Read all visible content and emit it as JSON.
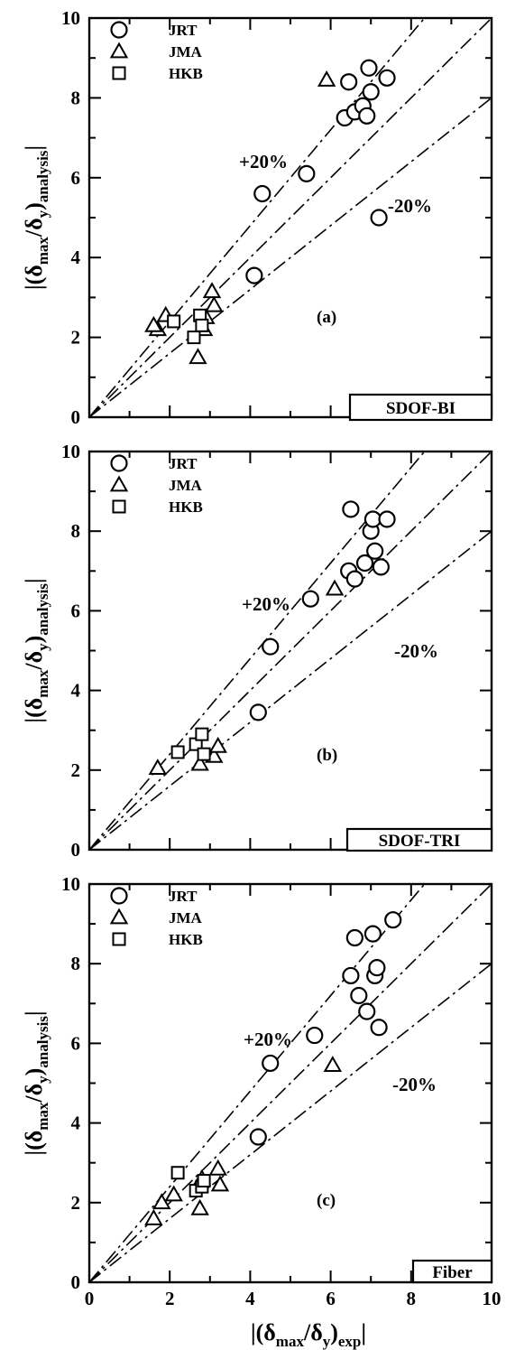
{
  "chart_data": [
    {
      "type": "scatter",
      "panel_tag": "(a)",
      "model_label": "SDOF-BI",
      "xlim": [
        0,
        10
      ],
      "ylim": [
        0,
        10
      ],
      "x_ticks": [
        "0",
        "2",
        "4",
        "6",
        "8",
        "10"
      ],
      "y_ticks": [
        "0",
        "2",
        "4",
        "6",
        "8",
        "10"
      ],
      "ylabel": "|(δmax/δy)analysis|",
      "reference_lines": [
        {
          "label": "+20%",
          "slope": 1.2,
          "style": "dash-dot"
        },
        {
          "label": "",
          "slope": 1.0,
          "style": "dash-dot"
        },
        {
          "label": "-20%",
          "slope": 0.8,
          "style": "dash-dot"
        }
      ],
      "series": [
        {
          "name": "JRT",
          "marker": "circle",
          "points": [
            [
              4.3,
              5.6
            ],
            [
              5.4,
              6.1
            ],
            [
              4.1,
              3.55
            ],
            [
              6.45,
              8.4
            ],
            [
              6.35,
              7.5
            ],
            [
              6.6,
              7.65
            ],
            [
              6.8,
              7.8
            ],
            [
              6.9,
              7.55
            ],
            [
              6.95,
              8.75
            ],
            [
              7.0,
              8.15
            ],
            [
              7.4,
              8.5
            ],
            [
              7.2,
              5.0
            ]
          ]
        },
        {
          "name": "JMA",
          "marker": "triangle",
          "points": [
            [
              1.7,
              2.2
            ],
            [
              1.9,
              2.55
            ],
            [
              1.6,
              2.3
            ],
            [
              2.7,
              1.5
            ],
            [
              2.85,
              2.2
            ],
            [
              3.05,
              3.15
            ],
            [
              3.1,
              2.8
            ],
            [
              2.9,
              2.5
            ],
            [
              5.9,
              8.45
            ]
          ]
        },
        {
          "name": "HKB",
          "marker": "square",
          "points": [
            [
              2.1,
              2.4
            ],
            [
              2.6,
              2.0
            ],
            [
              2.75,
              2.55
            ],
            [
              2.8,
              2.3
            ]
          ]
        }
      ]
    },
    {
      "type": "scatter",
      "panel_tag": "(b)",
      "model_label": "SDOF-TRI",
      "xlim": [
        0,
        10
      ],
      "ylim": [
        0,
        10
      ],
      "x_ticks": [
        "0",
        "2",
        "4",
        "6",
        "8",
        "10"
      ],
      "y_ticks": [
        "0",
        "2",
        "4",
        "6",
        "8",
        "10"
      ],
      "ylabel": "|(δmax/δy)analysis|",
      "reference_lines": [
        {
          "label": "+20%",
          "slope": 1.2,
          "style": "dash-dot"
        },
        {
          "label": "",
          "slope": 1.0,
          "style": "dash-dot"
        },
        {
          "label": "-20%",
          "slope": 0.8,
          "style": "dash-dot"
        }
      ],
      "series": [
        {
          "name": "JRT",
          "marker": "circle",
          "points": [
            [
              4.5,
              5.1
            ],
            [
              5.5,
              6.3
            ],
            [
              4.2,
              3.45
            ],
            [
              6.5,
              8.55
            ],
            [
              6.45,
              7.0
            ],
            [
              6.6,
              6.8
            ],
            [
              6.85,
              7.2
            ],
            [
              7.0,
              8.0
            ],
            [
              7.05,
              8.3
            ],
            [
              7.1,
              7.5
            ],
            [
              7.25,
              7.1
            ],
            [
              7.4,
              8.3
            ]
          ]
        },
        {
          "name": "JMA",
          "marker": "triangle",
          "points": [
            [
              1.7,
              2.05
            ],
            [
              2.75,
              2.15
            ],
            [
              3.1,
              2.35
            ],
            [
              3.2,
              2.6
            ],
            [
              6.1,
              6.55
            ]
          ]
        },
        {
          "name": "HKB",
          "marker": "square",
          "points": [
            [
              2.2,
              2.45
            ],
            [
              2.65,
              2.65
            ],
            [
              2.8,
              2.9
            ],
            [
              2.85,
              2.4
            ]
          ]
        }
      ]
    },
    {
      "type": "scatter",
      "panel_tag": "(c)",
      "model_label": "Fiber",
      "xlim": [
        0,
        10
      ],
      "ylim": [
        0,
        10
      ],
      "x_ticks": [
        "0",
        "2",
        "4",
        "6",
        "8",
        "10"
      ],
      "y_ticks": [
        "0",
        "2",
        "4",
        "6",
        "8",
        "10"
      ],
      "ylabel": "|(δmax/δy)analysis|",
      "xlabel": "|(δmax/δy)exp|",
      "reference_lines": [
        {
          "label": "+20%",
          "slope": 1.2,
          "style": "dash-dot"
        },
        {
          "label": "",
          "slope": 1.0,
          "style": "dash-dot"
        },
        {
          "label": "-20%",
          "slope": 0.8,
          "style": "dash-dot"
        }
      ],
      "series": [
        {
          "name": "JRT",
          "marker": "circle",
          "points": [
            [
              4.5,
              5.5
            ],
            [
              5.6,
              6.2
            ],
            [
              4.2,
              3.65
            ],
            [
              6.5,
              7.7
            ],
            [
              6.6,
              8.65
            ],
            [
              6.7,
              7.2
            ],
            [
              6.9,
              6.8
            ],
            [
              7.05,
              8.75
            ],
            [
              7.1,
              7.7
            ],
            [
              7.15,
              7.9
            ],
            [
              7.2,
              6.4
            ],
            [
              7.55,
              9.1
            ]
          ]
        },
        {
          "name": "JMA",
          "marker": "triangle",
          "points": [
            [
              1.6,
              1.6
            ],
            [
              1.8,
              2.0
            ],
            [
              2.1,
              2.2
            ],
            [
              2.75,
              1.85
            ],
            [
              2.8,
              2.6
            ],
            [
              3.2,
              2.85
            ],
            [
              3.25,
              2.45
            ],
            [
              6.05,
              5.45
            ]
          ]
        },
        {
          "name": "HKB",
          "marker": "square",
          "points": [
            [
              2.2,
              2.75
            ],
            [
              2.65,
              2.3
            ],
            [
              2.8,
              2.4
            ],
            [
              2.85,
              2.55
            ]
          ]
        }
      ]
    }
  ]
}
